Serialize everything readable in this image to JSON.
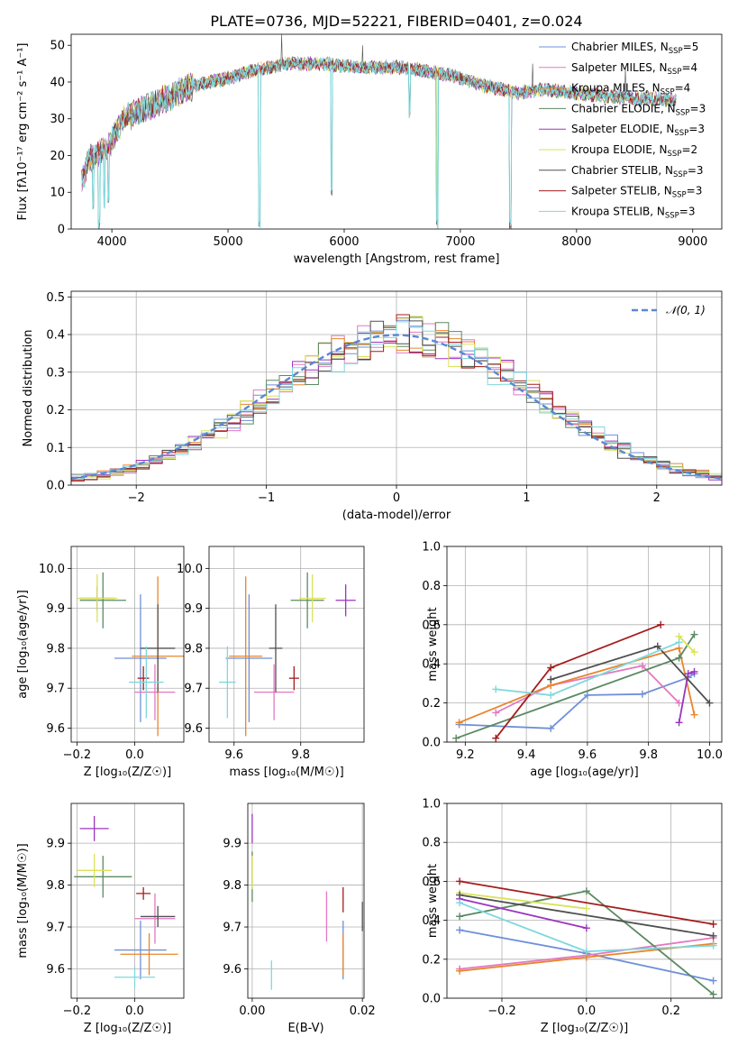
{
  "colors": {
    "chabrier_miles": "#6f8fd8",
    "salpeter_miles": "#e378c2",
    "kroupa_miles": "#e8862c",
    "chabrier_elodie": "#5b8a62",
    "salpeter_elodie": "#9b35c0",
    "kroupa_elodie": "#d8e35a",
    "chabrier_stelib": "#505050",
    "salpeter_stelib": "#a51c1c",
    "kroupa_stelib": "#7fd8dc",
    "normal_curve": "#5b87d4",
    "grid": "#b0b0b0"
  },
  "chart_data": [
    {
      "type": "line",
      "title": "PLATE=0736, MJD=52221, FIBERID=0401, z=0.024",
      "xlabel": "wavelength [Angstrom, rest frame]",
      "ylabel": "Flux [fλ10⁻¹⁷ erg cm⁻² s⁻¹ A⁻¹]",
      "xlim": [
        3650,
        9250
      ],
      "ylim": [
        0,
        53
      ],
      "xticks": [
        4000,
        5000,
        6000,
        7000,
        8000,
        9000
      ],
      "yticks": [
        0,
        10,
        20,
        30,
        40,
        50
      ],
      "grid": false,
      "legend_position": "top-right",
      "legend": [
        {
          "label": "Chabrier MILES, N",
          "sub": "SSP",
          "suffix": "=5",
          "color_key": "chabrier_miles"
        },
        {
          "label": "Salpeter MILES, N",
          "sub": "SSP",
          "suffix": "=4",
          "color_key": "salpeter_miles"
        },
        {
          "label": "Kroupa MILES, N",
          "sub": "SSP",
          "suffix": "=4",
          "color_key": "kroupa_miles"
        },
        {
          "label": "Chabrier ELODIE, N",
          "sub": "SSP",
          "suffix": "=3",
          "color_key": "chabrier_elodie"
        },
        {
          "label": "Salpeter ELODIE, N",
          "sub": "SSP",
          "suffix": "=3",
          "color_key": "salpeter_elodie"
        },
        {
          "label": "Kroupa ELODIE, N",
          "sub": "SSP",
          "suffix": "=2",
          "color_key": "kroupa_elodie"
        },
        {
          "label": "Chabrier STELIB, N",
          "sub": "SSP",
          "suffix": "=3",
          "color_key": "chabrier_stelib"
        },
        {
          "label": "Salpeter STELIB, N",
          "sub": "SSP",
          "suffix": "=3",
          "color_key": "salpeter_stelib"
        },
        {
          "label": "Kroupa STELIB, N",
          "sub": "SSP",
          "suffix": "=3",
          "color_key": "kroupa_stelib"
        }
      ],
      "continuum": [
        [
          3740,
          13
        ],
        [
          3800,
          19
        ],
        [
          3900,
          21
        ],
        [
          3960,
          22
        ],
        [
          4100,
          30
        ],
        [
          4300,
          33
        ],
        [
          4500,
          36
        ],
        [
          4700,
          39
        ],
        [
          5000,
          41
        ],
        [
          5200,
          43
        ],
        [
          5500,
          45
        ],
        [
          5800,
          45
        ],
        [
          6100,
          44
        ],
        [
          6500,
          44
        ],
        [
          6900,
          42
        ],
        [
          7200,
          39
        ],
        [
          7500,
          37
        ],
        [
          7700,
          38
        ],
        [
          8000,
          37
        ],
        [
          8300,
          36
        ],
        [
          8600,
          35.5
        ],
        [
          8860,
          35
        ]
      ],
      "absorption_lines": [
        [
          3840,
          5
        ],
        [
          3890,
          0
        ],
        [
          3934,
          5
        ],
        [
          3969,
          7
        ],
        [
          5270,
          0
        ],
        [
          5892,
          9
        ],
        [
          6563,
          30
        ],
        [
          6800,
          0
        ],
        [
          7430,
          0
        ],
        [
          8500,
          33
        ],
        [
          8545,
          33
        ],
        [
          8665,
          33
        ]
      ],
      "emission_spikes": [
        [
          5460,
          53
        ],
        [
          6160,
          50
        ],
        [
          7620,
          45
        ],
        [
          8420,
          44
        ]
      ]
    },
    {
      "type": "histogram",
      "xlabel": "(data-model)/error",
      "ylabel": "Normed distribution",
      "xlim": [
        -2.5,
        2.5
      ],
      "ylim": [
        0,
        0.515
      ],
      "xticks": [
        -2,
        -1,
        0,
        1,
        2
      ],
      "yticks": [
        0.0,
        0.1,
        0.2,
        0.3,
        0.4,
        0.5
      ],
      "grid": true,
      "legend_position": "top-right",
      "legend_label": "𝒩(0, 1)",
      "bin_edges_start": -2.5,
      "bin_width": 0.1,
      "bin_count": 50,
      "reference_normal": {
        "mean": 0,
        "sigma": 1
      }
    },
    {
      "type": "scatter",
      "xlabel": "Z [log₁₀(Z/Z☉)]",
      "ylabel": "age  [log₁₀(age/yr)]",
      "xlim": [
        -0.22,
        0.17
      ],
      "ylim": [
        9.565,
        10.055
      ],
      "xticks": [
        -0.2,
        0.0
      ],
      "yticks": [
        9.6,
        9.7,
        9.8,
        9.9,
        10.0
      ],
      "grid": true,
      "points": [
        {
          "color_key": "chabrier_miles",
          "x": 0.02,
          "xerr": 0.09,
          "y": 9.775,
          "yerr": 0.16
        },
        {
          "color_key": "salpeter_miles",
          "x": 0.07,
          "xerr": 0.07,
          "y": 9.69,
          "yerr": 0.07
        },
        {
          "color_key": "kroupa_miles",
          "x": 0.08,
          "xerr": 0.09,
          "y": 9.78,
          "yerr": 0.2
        },
        {
          "color_key": "chabrier_elodie",
          "x": -0.11,
          "xerr": 0.08,
          "y": 9.92,
          "yerr": 0.07
        },
        {
          "color_key": "salpeter_elodie",
          "x": -0.13,
          "xerr": 0.06,
          "y": 9.925,
          "yerr": 0.03
        },
        {
          "color_key": "kroupa_elodie",
          "x": -0.13,
          "xerr": 0.07,
          "y": 9.925,
          "yerr": 0.06
        },
        {
          "color_key": "chabrier_stelib",
          "x": 0.08,
          "xerr": 0.06,
          "y": 9.8,
          "yerr": 0.11
        },
        {
          "color_key": "salpeter_stelib",
          "x": 0.03,
          "xerr": 0.02,
          "y": 9.725,
          "yerr": 0.03
        },
        {
          "color_key": "kroupa_stelib",
          "x": 0.04,
          "xerr": 0.06,
          "y": 9.715,
          "yerr": 0.09
        }
      ]
    },
    {
      "type": "scatter",
      "xlabel": "mass [log₁₀(M/M☉)]",
      "ylabel": "",
      "xlim": [
        9.525,
        9.99
      ],
      "ylim": [
        9.565,
        10.055
      ],
      "xticks": [
        9.6,
        9.8
      ],
      "yticks": [
        9.6,
        9.7,
        9.8,
        9.9,
        10.0
      ],
      "grid": true,
      "points": [
        {
          "color_key": "chabrier_miles",
          "x": 9.645,
          "xerr": 0.07,
          "y": 9.775,
          "yerr": 0.16
        },
        {
          "color_key": "salpeter_miles",
          "x": 9.72,
          "xerr": 0.06,
          "y": 9.69,
          "yerr": 0.07
        },
        {
          "color_key": "kroupa_miles",
          "x": 9.635,
          "xerr": 0.05,
          "y": 9.78,
          "yerr": 0.2
        },
        {
          "color_key": "chabrier_elodie",
          "x": 9.82,
          "xerr": 0.05,
          "y": 9.92,
          "yerr": 0.07
        },
        {
          "color_key": "salpeter_elodie",
          "x": 9.935,
          "xerr": 0.03,
          "y": 9.92,
          "yerr": 0.04
        },
        {
          "color_key": "kroupa_elodie",
          "x": 9.835,
          "xerr": 0.04,
          "y": 9.925,
          "yerr": 0.06
        },
        {
          "color_key": "chabrier_stelib",
          "x": 9.725,
          "xerr": 0.02,
          "y": 9.8,
          "yerr": 0.11
        },
        {
          "color_key": "salpeter_stelib",
          "x": 9.78,
          "xerr": 0.015,
          "y": 9.725,
          "yerr": 0.03
        },
        {
          "color_key": "kroupa_stelib",
          "x": 9.58,
          "xerr": 0.025,
          "y": 9.715,
          "yerr": 0.09
        }
      ]
    },
    {
      "type": "line",
      "xlabel": "age  [log₁₀(age/yr)]",
      "ylabel": "mass weight",
      "xlim": [
        9.14,
        10.04
      ],
      "ylim": [
        0,
        1
      ],
      "xticks": [
        9.2,
        9.4,
        9.6,
        9.8,
        10.0
      ],
      "yticks": [
        0.0,
        0.2,
        0.4,
        0.6,
        0.8,
        1.0
      ],
      "grid": true,
      "series": [
        {
          "color_key": "chabrier_miles",
          "x": [
            9.18,
            9.48,
            9.6,
            9.78,
            9.93,
            9.95
          ],
          "y": [
            0.09,
            0.07,
            0.24,
            0.245,
            0.33,
            0.35
          ]
        },
        {
          "color_key": "salpeter_miles",
          "x": [
            9.3,
            9.48,
            9.78,
            9.9
          ],
          "y": [
            0.15,
            0.29,
            0.39,
            0.2
          ]
        },
        {
          "color_key": "kroupa_miles",
          "x": [
            9.18,
            9.48,
            9.9,
            9.95
          ],
          "y": [
            0.1,
            0.29,
            0.48,
            0.14
          ]
        },
        {
          "color_key": "chabrier_elodie",
          "x": [
            9.17,
            9.9,
            9.95
          ],
          "y": [
            0.02,
            0.43,
            0.55
          ]
        },
        {
          "color_key": "salpeter_elodie",
          "x": [
            9.9,
            9.93,
            9.95
          ],
          "y": [
            0.1,
            0.35,
            0.36
          ]
        },
        {
          "color_key": "kroupa_elodie",
          "x": [
            9.9,
            9.95
          ],
          "y": [
            0.54,
            0.46
          ]
        },
        {
          "color_key": "chabrier_stelib",
          "x": [
            9.48,
            9.83,
            10.0
          ],
          "y": [
            0.32,
            0.49,
            0.2
          ]
        },
        {
          "color_key": "salpeter_stelib",
          "x": [
            9.3,
            9.48,
            9.84
          ],
          "y": [
            0.02,
            0.38,
            0.6
          ]
        },
        {
          "color_key": "kroupa_stelib",
          "x": [
            9.3,
            9.48,
            9.9
          ],
          "y": [
            0.27,
            0.24,
            0.51
          ]
        }
      ]
    },
    {
      "type": "scatter",
      "xlabel": "Z [log₁₀(Z/Z☉)]",
      "ylabel": "mass [log₁₀(M/M☉)]",
      "xlim": [
        -0.22,
        0.17
      ],
      "ylim": [
        9.53,
        9.995
      ],
      "xticks": [
        -0.2,
        0.0
      ],
      "yticks": [
        9.6,
        9.7,
        9.8,
        9.9
      ],
      "grid": true,
      "points": [
        {
          "color_key": "chabrier_miles",
          "x": 0.02,
          "xerr": 0.09,
          "y": 9.645,
          "yerr": 0.07
        },
        {
          "color_key": "salpeter_miles",
          "x": 0.07,
          "xerr": 0.07,
          "y": 9.72,
          "yerr": 0.06
        },
        {
          "color_key": "kroupa_miles",
          "x": 0.05,
          "xerr": 0.1,
          "y": 9.635,
          "yerr": 0.05
        },
        {
          "color_key": "chabrier_elodie",
          "x": -0.11,
          "xerr": 0.1,
          "y": 9.82,
          "yerr": 0.05
        },
        {
          "color_key": "salpeter_elodie",
          "x": -0.14,
          "xerr": 0.05,
          "y": 9.935,
          "yerr": 0.03
        },
        {
          "color_key": "kroupa_elodie",
          "x": -0.14,
          "xerr": 0.06,
          "y": 9.835,
          "yerr": 0.04
        },
        {
          "color_key": "chabrier_stelib",
          "x": 0.08,
          "xerr": 0.06,
          "y": 9.725,
          "yerr": 0.025
        },
        {
          "color_key": "salpeter_stelib",
          "x": 0.03,
          "xerr": 0.025,
          "y": 9.78,
          "yerr": 0.015
        },
        {
          "color_key": "kroupa_stelib",
          "x": 0.0,
          "xerr": 0.07,
          "y": 9.58,
          "yerr": 0.025
        }
      ]
    },
    {
      "type": "scatter",
      "xlabel": "E(B-V)",
      "ylabel": "",
      "xlim": [
        -0.0008,
        0.0203
      ],
      "ylim": [
        9.53,
        9.995
      ],
      "xticks": [
        0.0,
        0.02
      ],
      "yticks": [
        9.6,
        9.7,
        9.8,
        9.9
      ],
      "grid": true,
      "points": [
        {
          "color_key": "chabrier_miles",
          "x": 0.0165,
          "y": 9.645,
          "yerr": 0.07
        },
        {
          "color_key": "salpeter_miles",
          "x": 0.0135,
          "y": 9.725,
          "yerr": 0.06
        },
        {
          "color_key": "kroupa_miles",
          "x": 0.0165,
          "y": 9.635,
          "yerr": 0.05
        },
        {
          "color_key": "chabrier_elodie",
          "x": 0.0,
          "y": 9.82,
          "yerr": 0.06
        },
        {
          "color_key": "salpeter_elodie",
          "x": 0.0,
          "y": 9.935,
          "yerr": 0.035
        },
        {
          "color_key": "kroupa_elodie",
          "x": 0.0,
          "y": 9.83,
          "yerr": 0.04
        },
        {
          "color_key": "chabrier_stelib",
          "x": 0.02,
          "y": 9.725,
          "yerr": 0.035
        },
        {
          "color_key": "salpeter_stelib",
          "x": 0.0165,
          "y": 9.765,
          "yerr": 0.03
        },
        {
          "color_key": "kroupa_stelib",
          "x": 0.0035,
          "y": 9.585,
          "yerr": 0.035
        }
      ]
    },
    {
      "type": "line",
      "xlabel": "Z [log₁₀(Z/Z☉)]",
      "ylabel": "mass weight",
      "xlim": [
        -0.33,
        0.32
      ],
      "ylim": [
        0,
        1
      ],
      "xticks": [
        -0.2,
        0.0,
        0.2
      ],
      "yticks": [
        0.0,
        0.2,
        0.4,
        0.6,
        0.8,
        1.0
      ],
      "grid": true,
      "series": [
        {
          "color_key": "chabrier_miles",
          "x": [
            -0.3,
            0.0,
            0.3
          ],
          "y": [
            0.35,
            0.23,
            0.09
          ]
        },
        {
          "color_key": "salpeter_miles",
          "x": [
            -0.3,
            0.0,
            0.3
          ],
          "y": [
            0.15,
            0.22,
            0.31
          ]
        },
        {
          "color_key": "kroupa_miles",
          "x": [
            -0.3,
            0.0,
            0.3
          ],
          "y": [
            0.14,
            0.21,
            0.28
          ]
        },
        {
          "color_key": "chabrier_elodie",
          "x": [
            -0.3,
            0.0,
            0.3
          ],
          "y": [
            0.42,
            0.55,
            0.02
          ]
        },
        {
          "color_key": "salpeter_elodie",
          "x": [
            -0.3,
            0.0
          ],
          "y": [
            0.51,
            0.36
          ]
        },
        {
          "color_key": "kroupa_elodie",
          "x": [
            -0.3,
            0.0
          ],
          "y": [
            0.54,
            0.46
          ]
        },
        {
          "color_key": "chabrier_stelib",
          "x": [
            -0.3,
            0.3
          ],
          "y": [
            0.53,
            0.32
          ]
        },
        {
          "color_key": "salpeter_stelib",
          "x": [
            -0.3,
            0.3
          ],
          "y": [
            0.6,
            0.38
          ]
        },
        {
          "color_key": "kroupa_stelib",
          "x": [
            -0.3,
            0.0,
            0.3
          ],
          "y": [
            0.49,
            0.24,
            0.27
          ]
        }
      ]
    }
  ]
}
